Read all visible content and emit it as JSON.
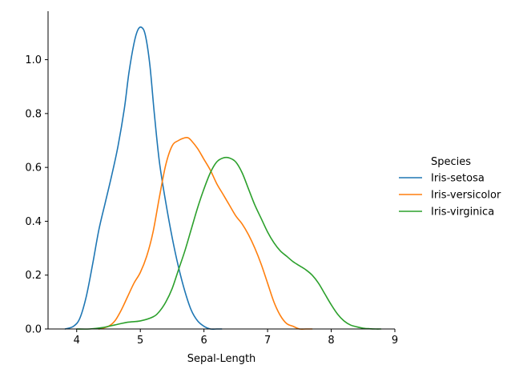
{
  "chart_data": {
    "type": "line",
    "xlabel": "Sepal-Length",
    "ylabel": "",
    "xlim": [
      3.55,
      9.0
    ],
    "ylim": [
      0.0,
      1.18
    ],
    "xticks": [
      4,
      5,
      6,
      7,
      8,
      9
    ],
    "yticks": [
      0.0,
      0.2,
      0.4,
      0.6,
      0.8,
      1.0
    ],
    "grid": false,
    "legend": {
      "title": "Species",
      "placement": "right"
    },
    "series": [
      {
        "name": "Iris-setosa",
        "color": "#1f77b4",
        "x": [
          3.82,
          3.95,
          4.05,
          4.15,
          4.25,
          4.35,
          4.45,
          4.55,
          4.65,
          4.75,
          4.82,
          4.9,
          4.96,
          5.02,
          5.08,
          5.15,
          5.22,
          5.3,
          5.4,
          5.5,
          5.6,
          5.7,
          5.8,
          5.9,
          6.0,
          6.1,
          6.2,
          6.28
        ],
        "y": [
          0.0,
          0.01,
          0.04,
          0.12,
          0.24,
          0.37,
          0.47,
          0.57,
          0.68,
          0.82,
          0.95,
          1.06,
          1.11,
          1.12,
          1.09,
          0.98,
          0.8,
          0.62,
          0.47,
          0.34,
          0.23,
          0.14,
          0.07,
          0.03,
          0.01,
          0.0,
          0.0,
          0.0
        ]
      },
      {
        "name": "Iris-versicolor",
        "color": "#ff7f0e",
        "x": [
          4.35,
          4.5,
          4.6,
          4.7,
          4.8,
          4.9,
          5.0,
          5.1,
          5.2,
          5.3,
          5.4,
          5.5,
          5.6,
          5.7,
          5.75,
          5.8,
          5.9,
          6.0,
          6.1,
          6.2,
          6.3,
          6.4,
          6.5,
          6.6,
          6.7,
          6.8,
          6.9,
          7.0,
          7.1,
          7.2,
          7.3,
          7.4,
          7.5,
          7.6,
          7.7
        ],
        "y": [
          0.0,
          0.01,
          0.03,
          0.07,
          0.12,
          0.17,
          0.21,
          0.27,
          0.36,
          0.49,
          0.61,
          0.68,
          0.7,
          0.71,
          0.71,
          0.7,
          0.67,
          0.63,
          0.59,
          0.54,
          0.5,
          0.46,
          0.42,
          0.39,
          0.35,
          0.3,
          0.24,
          0.17,
          0.1,
          0.05,
          0.02,
          0.01,
          0.0,
          0.0,
          0.0
        ]
      },
      {
        "name": "Iris-virginica",
        "color": "#2ca02c",
        "x": [
          4.0,
          4.2,
          4.4,
          4.6,
          4.8,
          5.0,
          5.2,
          5.3,
          5.4,
          5.5,
          5.6,
          5.7,
          5.8,
          5.9,
          6.0,
          6.1,
          6.2,
          6.3,
          6.4,
          6.5,
          6.6,
          6.7,
          6.8,
          6.9,
          7.0,
          7.1,
          7.2,
          7.3,
          7.4,
          7.5,
          7.6,
          7.7,
          7.8,
          7.9,
          8.0,
          8.1,
          8.2,
          8.3,
          8.4,
          8.5,
          8.6,
          8.7,
          8.78
        ],
        "y": [
          0.0,
          0.0,
          0.005,
          0.015,
          0.025,
          0.03,
          0.045,
          0.065,
          0.1,
          0.15,
          0.22,
          0.29,
          0.37,
          0.45,
          0.52,
          0.58,
          0.62,
          0.635,
          0.635,
          0.62,
          0.58,
          0.52,
          0.46,
          0.41,
          0.36,
          0.32,
          0.29,
          0.27,
          0.25,
          0.235,
          0.22,
          0.2,
          0.17,
          0.13,
          0.09,
          0.055,
          0.03,
          0.015,
          0.008,
          0.003,
          0.001,
          0.0,
          0.0
        ]
      }
    ]
  }
}
